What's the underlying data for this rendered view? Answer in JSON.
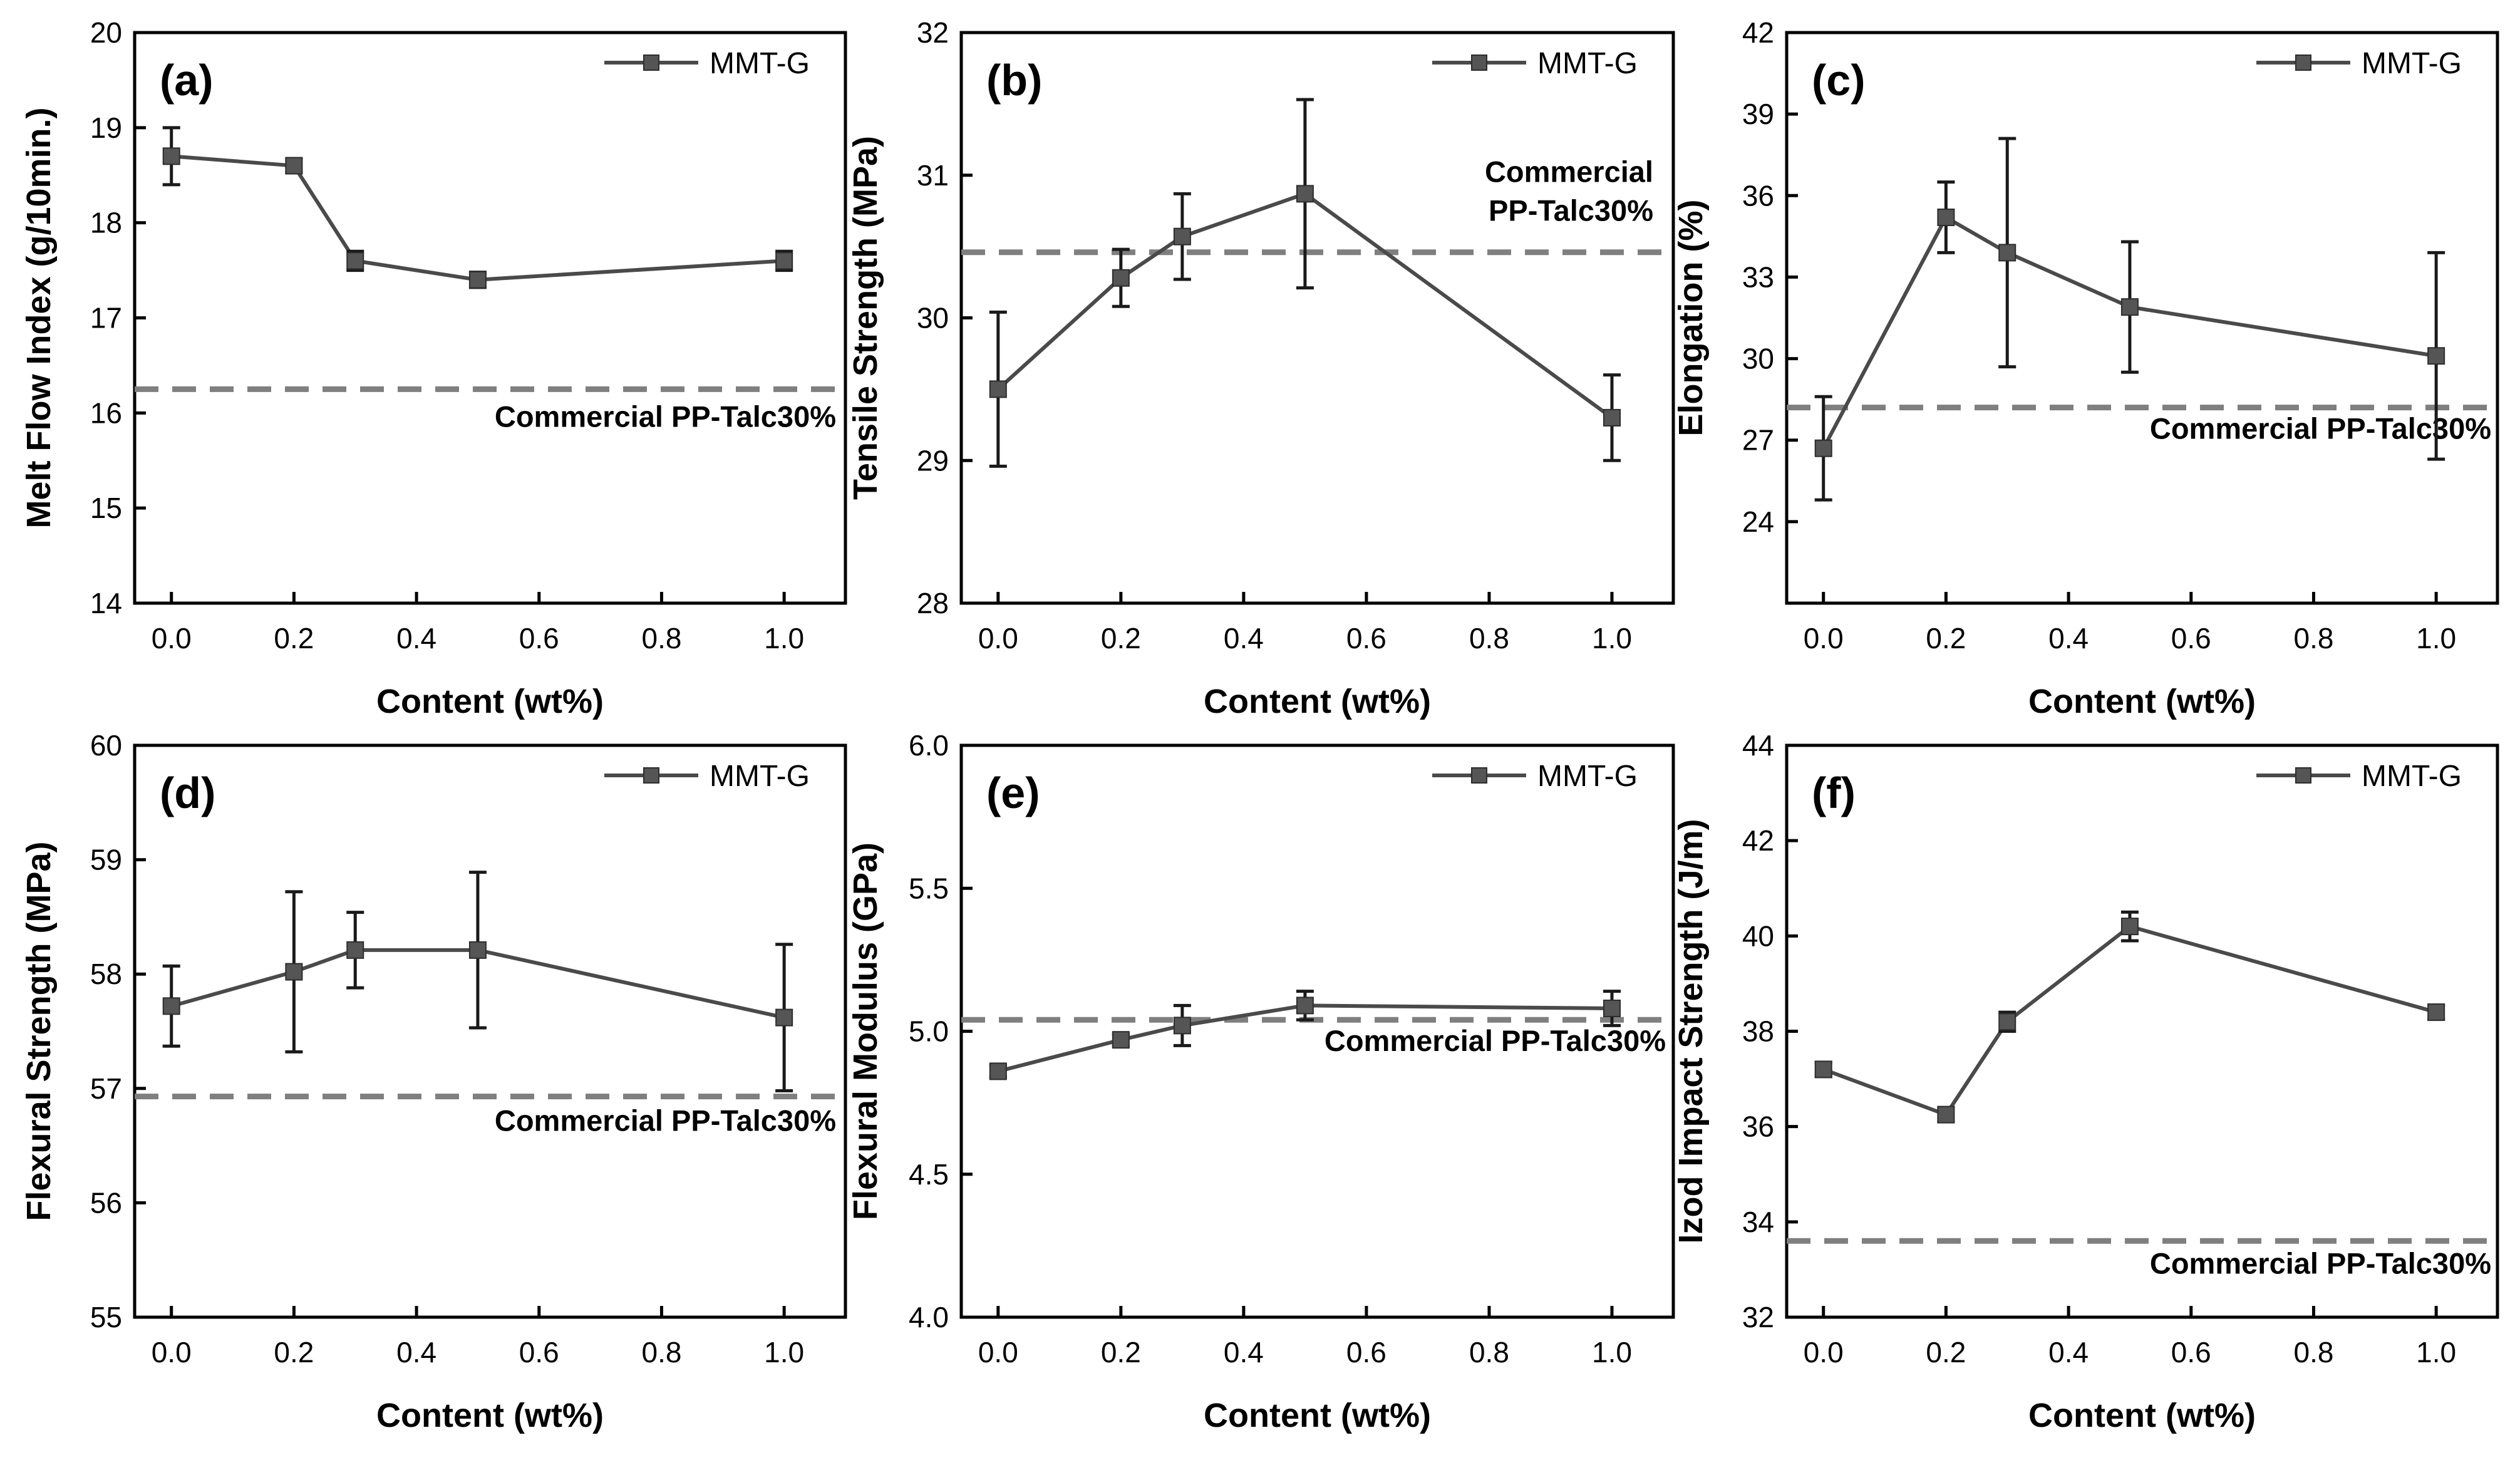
{
  "chart_data": [
    {
      "type": "line",
      "panel_label": "(a)",
      "ylabel": "Melt Flow Index (g/10min.)",
      "xlabel": "Content (wt%)",
      "xlim": [
        -0.06,
        1.1
      ],
      "ylim": [
        14,
        20
      ],
      "xticks": [
        "0.0",
        "0.2",
        "0.4",
        "0.6",
        "0.8",
        "1.0"
      ],
      "yticks": [
        "14",
        "15",
        "16",
        "17",
        "18",
        "19",
        "20"
      ],
      "legend": "MMT-G",
      "series": [
        {
          "name": "MMT-G",
          "x": [
            0,
            0.2,
            0.3,
            0.5,
            1.0
          ],
          "values": [
            18.7,
            18.6,
            17.6,
            17.4,
            17.6
          ],
          "errors": [
            0.3,
            0.07,
            0.1,
            0.08,
            0.1
          ]
        }
      ],
      "reference": {
        "value": 16.25,
        "label": "Commercial PP-Talc30%"
      }
    },
    {
      "type": "line",
      "panel_label": "(b)",
      "ylabel": "Tensile Strength (MPa)",
      "xlabel": "Content (wt%)",
      "xlim": [
        -0.06,
        1.1
      ],
      "ylim": [
        28,
        32
      ],
      "xticks": [
        "0.0",
        "0.2",
        "0.4",
        "0.6",
        "0.8",
        "1.0"
      ],
      "yticks": [
        "28",
        "29",
        "30",
        "31",
        "32"
      ],
      "legend": "MMT-G",
      "series": [
        {
          "name": "MMT-G",
          "x": [
            0,
            0.2,
            0.3,
            0.5,
            1.0
          ],
          "values": [
            29.5,
            30.28,
            30.57,
            30.87,
            29.3
          ],
          "errors": [
            0.54,
            0.2,
            0.3,
            0.66,
            0.3
          ]
        }
      ],
      "reference": {
        "value": 30.46,
        "label": "Commercial PP-Talc30%",
        "label_lines": [
          "Commercial",
          "PP-Talc30%"
        ]
      }
    },
    {
      "type": "line",
      "panel_label": "(c)",
      "ylabel": "Elongation (%)",
      "xlabel": "Content (wt%)",
      "xlim": [
        -0.06,
        1.1
      ],
      "ylim": [
        21,
        42
      ],
      "xticks": [
        "0.0",
        "0.2",
        "0.4",
        "0.6",
        "0.8",
        "1.0"
      ],
      "yticks": [
        "24",
        "27",
        "30",
        "33",
        "36",
        "39",
        "42"
      ],
      "legend": "MMT-G",
      "series": [
        {
          "name": "MMT-G",
          "x": [
            0,
            0.2,
            0.3,
            0.5,
            1.0
          ],
          "values": [
            26.7,
            35.2,
            33.9,
            31.9,
            30.1
          ],
          "errors": [
            1.9,
            1.3,
            4.2,
            2.4,
            3.8
          ]
        }
      ],
      "reference": {
        "value": 28.2,
        "label": "Commercial PP-Talc30%"
      }
    },
    {
      "type": "line",
      "panel_label": "(d)",
      "ylabel": "Flexural Strength (MPa)",
      "xlabel": "Content (wt%)",
      "xlim": [
        -0.06,
        1.1
      ],
      "ylim": [
        55,
        60
      ],
      "xticks": [
        "0.0",
        "0.2",
        "0.4",
        "0.6",
        "0.8",
        "1.0"
      ],
      "yticks": [
        "55",
        "56",
        "57",
        "58",
        "59",
        "60"
      ],
      "legend": "MMT-G",
      "series": [
        {
          "name": "MMT-G",
          "x": [
            0,
            0.2,
            0.3,
            0.5,
            1.0
          ],
          "values": [
            57.72,
            58.02,
            58.21,
            58.21,
            57.62
          ],
          "errors": [
            0.35,
            0.7,
            0.33,
            0.68,
            0.64
          ]
        }
      ],
      "reference": {
        "value": 56.93,
        "label": "Commercial PP-Talc30%"
      }
    },
    {
      "type": "line",
      "panel_label": "(e)",
      "ylabel": "Flexural Modulus (GPa)",
      "xlabel": "Content (wt%)",
      "xlim": [
        -0.06,
        1.1
      ],
      "ylim": [
        4.0,
        6.0
      ],
      "xticks": [
        "0.0",
        "0.2",
        "0.4",
        "0.6",
        "0.8",
        "1.0"
      ],
      "yticks": [
        "4.0",
        "4.5",
        "5.0",
        "5.5",
        "6.0"
      ],
      "legend": "MMT-G",
      "series": [
        {
          "name": "MMT-G",
          "x": [
            0,
            0.2,
            0.3,
            0.5,
            1.0
          ],
          "values": [
            4.86,
            4.97,
            5.02,
            5.09,
            5.08
          ],
          "errors": [
            0.02,
            0.02,
            0.07,
            0.05,
            0.06
          ]
        }
      ],
      "reference": {
        "value": 5.04,
        "label": "Commercial PP-Talc30%"
      }
    },
    {
      "type": "line",
      "panel_label": "(f)",
      "ylabel": "Izod Impact Strength (J/m)",
      "xlabel": "Content (wt%)",
      "xlim": [
        -0.06,
        1.1
      ],
      "ylim": [
        32,
        44
      ],
      "xticks": [
        "0.0",
        "0.2",
        "0.4",
        "0.6",
        "0.8",
        "1.0"
      ],
      "yticks": [
        "32",
        "34",
        "36",
        "38",
        "40",
        "42",
        "44"
      ],
      "legend": "MMT-G",
      "series": [
        {
          "name": "MMT-G",
          "x": [
            0,
            0.2,
            0.3,
            0.5,
            1.0
          ],
          "values": [
            37.2,
            36.25,
            38.2,
            40.2,
            38.4
          ],
          "errors": [
            0.15,
            0.15,
            0.2,
            0.3,
            0.15
          ]
        }
      ],
      "reference": {
        "value": 33.6,
        "label": "Commercial PP-Talc30%"
      }
    }
  ],
  "colors": {
    "series": "#4a4a4a",
    "marker": "#555555",
    "reference": "#7f7f7f"
  }
}
